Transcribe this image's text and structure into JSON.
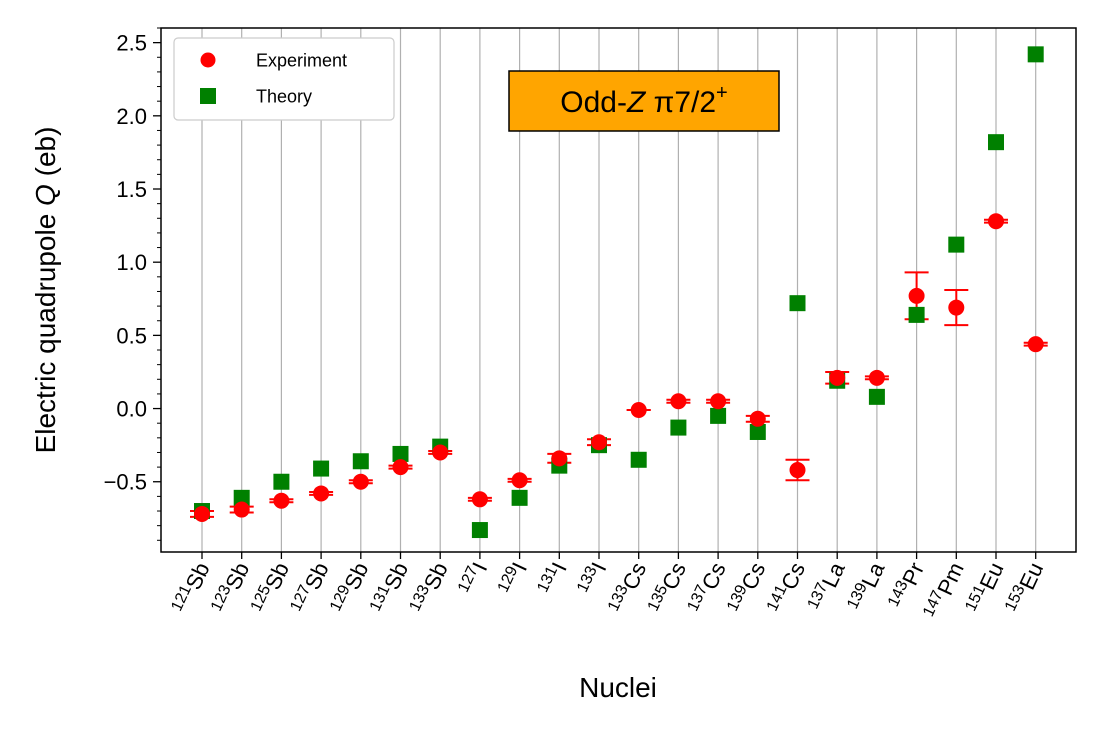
{
  "chart_data": {
    "type": "scatter",
    "title_box": {
      "prefix": "Odd-",
      "italic": "Z",
      "suffix": " π7/2",
      "superscript": "+",
      "background": "#FFA500"
    },
    "xlabel": "Nuclei",
    "ylabel": {
      "prefix": "Electric quadrupole ",
      "italic": "Q",
      "suffix": " (eb)"
    },
    "ylim": [
      -0.98,
      2.6
    ],
    "yticks": [
      -0.5,
      0.0,
      0.5,
      1.0,
      1.5,
      2.0,
      2.5
    ],
    "ytick_labels": [
      "−0.5",
      "0.0",
      "0.5",
      "1.0",
      "1.5",
      "2.0",
      "2.5"
    ],
    "grid": "vertical",
    "legend": {
      "placement": "top-left",
      "entries": [
        "Experiment",
        "Theory"
      ]
    },
    "categories": [
      {
        "mass": "121",
        "symbol": "Sb"
      },
      {
        "mass": "123",
        "symbol": "Sb"
      },
      {
        "mass": "125",
        "symbol": "Sb"
      },
      {
        "mass": "127",
        "symbol": "Sb"
      },
      {
        "mass": "129",
        "symbol": "Sb"
      },
      {
        "mass": "131",
        "symbol": "Sb"
      },
      {
        "mass": "133",
        "symbol": "Sb"
      },
      {
        "mass": "127",
        "symbol": "I"
      },
      {
        "mass": "129",
        "symbol": "I"
      },
      {
        "mass": "131",
        "symbol": "I"
      },
      {
        "mass": "133",
        "symbol": "I"
      },
      {
        "mass": "133",
        "symbol": "Cs"
      },
      {
        "mass": "135",
        "symbol": "Cs"
      },
      {
        "mass": "137",
        "symbol": "Cs"
      },
      {
        "mass": "139",
        "symbol": "Cs"
      },
      {
        "mass": "141",
        "symbol": "Cs"
      },
      {
        "mass": "137",
        "symbol": "La"
      },
      {
        "mass": "139",
        "symbol": "La"
      },
      {
        "mass": "143",
        "symbol": "Pr"
      },
      {
        "mass": "147",
        "symbol": "Pm"
      },
      {
        "mass": "151",
        "symbol": "Eu"
      },
      {
        "mass": "153",
        "symbol": "Eu"
      }
    ],
    "series": [
      {
        "name": "Experiment",
        "marker": "circle",
        "color": "#FF0000",
        "values": [
          -0.72,
          -0.69,
          -0.63,
          -0.58,
          -0.5,
          -0.4,
          -0.3,
          -0.62,
          -0.49,
          -0.34,
          -0.23,
          -0.01,
          0.05,
          0.05,
          -0.07,
          -0.42,
          0.21,
          0.21,
          0.77,
          0.69,
          1.28,
          0.44
        ],
        "errors": [
          0.02,
          0.02,
          0.01,
          0.01,
          0.01,
          0.01,
          0.01,
          0.01,
          0.01,
          0.03,
          0.02,
          0.0,
          0.01,
          0.01,
          0.02,
          0.07,
          0.04,
          0.01,
          0.16,
          0.12,
          0.01,
          0.01
        ]
      },
      {
        "name": "Theory",
        "marker": "square",
        "color": "#008000",
        "values": [
          -0.7,
          -0.61,
          -0.5,
          -0.41,
          -0.36,
          -0.31,
          -0.26,
          -0.83,
          -0.61,
          -0.39,
          -0.25,
          -0.35,
          -0.13,
          -0.05,
          -0.16,
          0.72,
          0.19,
          0.08,
          0.64,
          1.12,
          1.82,
          2.42
        ]
      }
    ]
  }
}
